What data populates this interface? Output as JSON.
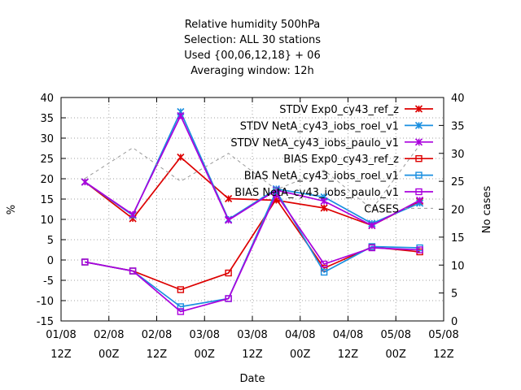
{
  "chart_data": {
    "type": "line",
    "title_lines": [
      "Relative humidity 500hPa",
      "Selection: ALL      30 stations",
      "Used {00,06,12,18} + 06",
      "Averaging window: 12h"
    ],
    "xlabel": "Date",
    "ylabel": "%",
    "y2label": "No cases",
    "x_ticks": [
      {
        "line1": "01/08",
        "line2": "12Z"
      },
      {
        "line1": "02/08",
        "line2": "00Z"
      },
      {
        "line1": "02/08",
        "line2": "12Z"
      },
      {
        "line1": "03/08",
        "line2": "00Z"
      },
      {
        "line1": "03/08",
        "line2": "12Z"
      },
      {
        "line1": "04/08",
        "line2": "00Z"
      },
      {
        "line1": "04/08",
        "line2": "12Z"
      },
      {
        "line1": "05/08",
        "line2": "00Z"
      },
      {
        "line1": "05/08",
        "line2": "12Z"
      }
    ],
    "x": [
      0.5,
      1.5,
      2.5,
      3.5,
      4.5,
      5.5,
      6.5,
      7.5
    ],
    "xlim": [
      0,
      8
    ],
    "ylim": [
      -15,
      40
    ],
    "y_ticks": [
      -15,
      -10,
      -5,
      0,
      5,
      10,
      15,
      20,
      25,
      30,
      35,
      40
    ],
    "y2lim": [
      0,
      40
    ],
    "y2_ticks": [
      0,
      5,
      10,
      15,
      20,
      25,
      30,
      35,
      40
    ],
    "grid": true,
    "legend_position": "top-right",
    "series": [
      {
        "name": "STDV Exp0_cy43_ref_z",
        "color": "#dd0000",
        "marker": "x",
        "axis": "y1",
        "values": [
          19.2,
          10.2,
          25.3,
          15.1,
          14.7,
          12.8,
          8.5,
          14.5
        ]
      },
      {
        "name": "STDV NetA_cy43_iobs_roel_v1",
        "color": "#1a8fe0",
        "marker": "x",
        "axis": "y1",
        "values": [
          19.2,
          11.0,
          36.5,
          10.0,
          17.5,
          15.5,
          9.0,
          14.0
        ]
      },
      {
        "name": "STDV NetA_cy43_iobs_paulo_v1",
        "color": "#aa00dd",
        "marker": "x",
        "axis": "y1",
        "values": [
          19.2,
          11.2,
          35.5,
          9.8,
          17.2,
          14.5,
          8.5,
          14.7
        ]
      },
      {
        "name": "BIAS Exp0_cy43_ref_z",
        "color": "#dd0000",
        "marker": "square",
        "axis": "y1",
        "values": [
          -0.5,
          -2.7,
          -7.3,
          -3.2,
          15.0,
          -2.0,
          3.2,
          2.0
        ]
      },
      {
        "name": "BIAS NetA_cy43_iobs_roel_v1",
        "color": "#1a8fe0",
        "marker": "square",
        "axis": "y1",
        "values": [
          -0.5,
          -2.7,
          -11.5,
          -9.5,
          17.0,
          -3.0,
          3.3,
          3.0
        ]
      },
      {
        "name": "BIAS NetA_cy43_iobs_paulo_v1",
        "color": "#aa00dd",
        "marker": "square",
        "axis": "y1",
        "values": [
          -0.5,
          -2.7,
          -12.7,
          -9.5,
          16.2,
          -1.0,
          3.0,
          2.5
        ]
      },
      {
        "name": "CASES",
        "color": "#999999",
        "marker": "none",
        "dash": true,
        "axis": "y2",
        "values": [
          25.5,
          31.0,
          25.0,
          30.0,
          23.5,
          27.0,
          20.0,
          31.5
        ]
      }
    ]
  }
}
